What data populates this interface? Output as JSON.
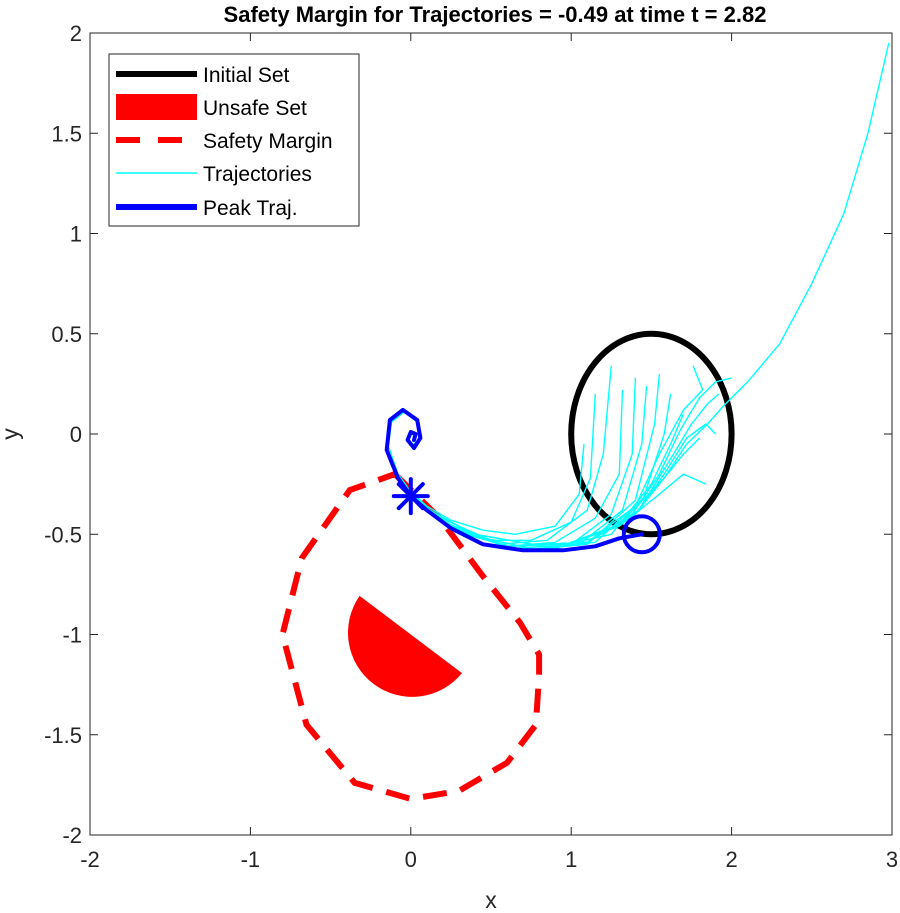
{
  "chart_data": {
    "type": "line",
    "title": "Safety Margin for Trajectories = -0.49 at time t = 2.82",
    "xlabel": "x",
    "ylabel": "y",
    "xlim": [
      -2,
      3
    ],
    "ylim": [
      -2,
      2
    ],
    "xticks": [
      -2,
      -1,
      0,
      1,
      2,
      3
    ],
    "yticks": [
      -2,
      -1.5,
      -1,
      -0.5,
      0,
      0.5,
      1,
      1.5,
      2
    ],
    "xtick_labels": [
      "-2",
      "-1",
      "0",
      "1",
      "2",
      "3"
    ],
    "ytick_labels": [
      "-2",
      "-1.5",
      "-1",
      "-0.5",
      "0",
      "0.5",
      "1",
      "1.5",
      "2"
    ],
    "grid": false,
    "legend_position": "top-left",
    "legend": [
      {
        "label": "Initial Set",
        "color": "#000000",
        "style": "thick-solid"
      },
      {
        "label": "Unsafe Set",
        "color": "#ff0000",
        "style": "patch"
      },
      {
        "label": "Safety Margin",
        "color": "#ff0000",
        "style": "dashed"
      },
      {
        "label": "Trajectories",
        "color": "#00ffff",
        "style": "thin-solid"
      },
      {
        "label": "Peak Traj.",
        "color": "#0000ff",
        "style": "thick-solid"
      }
    ],
    "initial_set": {
      "shape": "ellipse",
      "center": [
        1.5,
        0
      ],
      "radius_x": 0.5,
      "radius_y": 0.5,
      "color": "#000000"
    },
    "unsafe_set": {
      "shape": "half-disk",
      "center": [
        0,
        -1
      ],
      "radius": 0.4,
      "cut_angle_deg": -37,
      "color": "#ff0000"
    },
    "safety_margin": {
      "color": "#ff0000",
      "points": [
        [
          -0.1,
          -0.2
        ],
        [
          0.18,
          -0.42
        ],
        [
          0.46,
          -0.72
        ],
        [
          0.68,
          -0.94
        ],
        [
          0.8,
          -1.1
        ],
        [
          0.8,
          -1.2
        ],
        [
          0.78,
          -1.45
        ],
        [
          0.6,
          -1.64
        ],
        [
          0.3,
          -1.78
        ],
        [
          0,
          -1.82
        ],
        [
          -0.35,
          -1.74
        ],
        [
          -0.65,
          -1.45
        ],
        [
          -0.8,
          -1.0
        ],
        [
          -0.68,
          -0.62
        ],
        [
          -0.38,
          -0.28
        ],
        [
          -0.1,
          -0.2
        ]
      ]
    },
    "peak_marker": {
      "x": 1.44,
      "y": -0.5,
      "color": "#0000ff",
      "marker": "circle"
    },
    "peak_star": {
      "x": 0.0,
      "y": -0.31,
      "color": "#0000ff",
      "marker": "asterisk"
    },
    "trajectory_color": "#00ffff",
    "peak_color": "#0000ff",
    "trajectories": [
      [
        [
          1.08,
          -0.05
        ],
        [
          1.05,
          -0.3
        ],
        [
          0.9,
          -0.46
        ],
        [
          0.65,
          -0.5
        ],
        [
          0.45,
          -0.48
        ],
        [
          0.25,
          -0.43
        ],
        [
          0.1,
          -0.36
        ],
        [
          0.02,
          -0.3
        ]
      ],
      [
        [
          1.15,
          0.2
        ],
        [
          1.12,
          -0.22
        ],
        [
          1.0,
          -0.44
        ],
        [
          0.75,
          -0.53
        ],
        [
          0.5,
          -0.53
        ],
        [
          0.3,
          -0.46
        ],
        [
          0.12,
          -0.38
        ],
        [
          0.02,
          -0.31
        ]
      ],
      [
        [
          1.25,
          0.34
        ],
        [
          1.2,
          -0.1
        ],
        [
          1.1,
          -0.38
        ],
        [
          0.85,
          -0.53
        ],
        [
          0.55,
          -0.55
        ],
        [
          0.3,
          -0.48
        ],
        [
          0.12,
          -0.39
        ],
        [
          0.02,
          -0.31
        ]
      ],
      [
        [
          1.32,
          0.22
        ],
        [
          1.3,
          -0.2
        ],
        [
          1.15,
          -0.42
        ],
        [
          0.9,
          -0.54
        ],
        [
          0.6,
          -0.56
        ],
        [
          0.3,
          -0.48
        ],
        [
          0.12,
          -0.39
        ],
        [
          0.02,
          -0.31
        ]
      ],
      [
        [
          1.4,
          0.28
        ],
        [
          1.38,
          -0.1
        ],
        [
          1.25,
          -0.4
        ],
        [
          1.0,
          -0.55
        ],
        [
          0.65,
          -0.57
        ],
        [
          0.3,
          -0.49
        ],
        [
          0.12,
          -0.39
        ],
        [
          0.02,
          -0.31
        ]
      ],
      [
        [
          1.47,
          0.24
        ],
        [
          1.44,
          -0.05
        ],
        [
          1.32,
          -0.38
        ],
        [
          1.05,
          -0.55
        ],
        [
          0.65,
          -0.57
        ],
        [
          0.3,
          -0.49
        ],
        [
          0.12,
          -0.39
        ],
        [
          0.02,
          -0.31
        ]
      ],
      [
        [
          1.55,
          0.3
        ],
        [
          1.52,
          0.05
        ],
        [
          1.4,
          -0.33
        ],
        [
          1.1,
          -0.55
        ],
        [
          0.7,
          -0.58
        ],
        [
          0.3,
          -0.49
        ],
        [
          0.12,
          -0.39
        ],
        [
          0.02,
          -0.31
        ]
      ],
      [
        [
          1.62,
          0.2
        ],
        [
          1.58,
          0.0
        ],
        [
          1.45,
          -0.32
        ],
        [
          1.15,
          -0.54
        ],
        [
          0.7,
          -0.58
        ],
        [
          0.3,
          -0.49
        ],
        [
          0.12,
          -0.39
        ],
        [
          0.02,
          -0.31
        ]
      ],
      [
        [
          1.7,
          0.1
        ],
        [
          1.62,
          -0.05
        ],
        [
          1.5,
          -0.25
        ],
        [
          1.25,
          -0.5
        ],
        [
          0.8,
          -0.58
        ],
        [
          0.35,
          -0.5
        ],
        [
          0.12,
          -0.39
        ],
        [
          0.02,
          -0.31
        ]
      ],
      [
        [
          1.8,
          -0.02
        ],
        [
          1.7,
          -0.1
        ],
        [
          1.58,
          -0.22
        ],
        [
          1.3,
          -0.45
        ],
        [
          0.9,
          -0.57
        ],
        [
          0.4,
          -0.5
        ],
        [
          0.12,
          -0.39
        ],
        [
          0.02,
          -0.31
        ]
      ],
      [
        [
          1.84,
          -0.25
        ],
        [
          1.7,
          -0.2
        ],
        [
          1.55,
          -0.3
        ],
        [
          1.3,
          -0.46
        ],
        [
          0.9,
          -0.57
        ],
        [
          0.4,
          -0.5
        ],
        [
          0.12,
          -0.39
        ],
        [
          0.02,
          -0.31
        ]
      ],
      [
        [
          1.76,
          0.34
        ],
        [
          1.82,
          0.22
        ],
        [
          1.7,
          0.12
        ],
        [
          1.55,
          -0.1
        ],
        [
          1.4,
          -0.36
        ],
        [
          1.1,
          -0.54
        ],
        [
          0.6,
          -0.56
        ],
        [
          0.2,
          -0.44
        ],
        [
          0.02,
          -0.31
        ]
      ],
      [
        [
          1.92,
          0.2
        ],
        [
          1.85,
          0.15
        ],
        [
          1.75,
          0.05
        ],
        [
          1.6,
          -0.15
        ],
        [
          1.42,
          -0.38
        ],
        [
          1.1,
          -0.54
        ],
        [
          0.6,
          -0.56
        ],
        [
          0.2,
          -0.44
        ],
        [
          0.02,
          -0.31
        ]
      ],
      [
        [
          1.9,
          0.0
        ],
        [
          1.84,
          0.05
        ],
        [
          1.72,
          -0.02
        ],
        [
          1.58,
          -0.2
        ],
        [
          1.4,
          -0.4
        ],
        [
          1.1,
          -0.54
        ],
        [
          0.6,
          -0.56
        ],
        [
          0.2,
          -0.44
        ],
        [
          0.02,
          -0.31
        ]
      ],
      [
        [
          2.98,
          1.95
        ],
        [
          2.85,
          1.5
        ],
        [
          2.7,
          1.1
        ],
        [
          2.5,
          0.75
        ],
        [
          2.3,
          0.45
        ],
        [
          2.1,
          0.26
        ],
        [
          1.95,
          0.14
        ],
        [
          1.85,
          0.05
        ],
        [
          1.72,
          -0.05
        ],
        [
          1.58,
          -0.22
        ],
        [
          1.4,
          -0.4
        ],
        [
          1.1,
          -0.54
        ],
        [
          0.6,
          -0.56
        ],
        [
          0.2,
          -0.44
        ],
        [
          0.02,
          -0.31
        ]
      ],
      [
        [
          2.0,
          0.28
        ],
        [
          1.9,
          0.26
        ],
        [
          1.8,
          0.18
        ],
        [
          1.68,
          0.02
        ],
        [
          1.55,
          -0.2
        ],
        [
          1.38,
          -0.4
        ],
        [
          1.1,
          -0.54
        ],
        [
          0.6,
          -0.56
        ],
        [
          0.2,
          -0.44
        ],
        [
          0.02,
          -0.31
        ]
      ],
      [
        [
          0.02,
          -0.31
        ],
        [
          -0.08,
          -0.2
        ],
        [
          -0.14,
          -0.06
        ],
        [
          -0.12,
          0.06
        ],
        [
          -0.04,
          0.11
        ],
        [
          0.04,
          0.06
        ],
        [
          0.05,
          -0.03
        ],
        [
          0.0,
          -0.06
        ],
        [
          -0.02,
          -0.01
        ],
        [
          0.01,
          0.01
        ],
        [
          0.02,
          -0.02
        ]
      ]
    ],
    "peak_trajectory": [
      [
        1.44,
        -0.5
      ],
      [
        1.3,
        -0.52
      ],
      [
        1.15,
        -0.56
      ],
      [
        0.95,
        -0.58
      ],
      [
        0.7,
        -0.58
      ],
      [
        0.45,
        -0.55
      ],
      [
        0.25,
        -0.47
      ],
      [
        0.1,
        -0.38
      ],
      [
        0.0,
        -0.31
      ],
      [
        -0.08,
        -0.22
      ],
      [
        -0.15,
        -0.08
      ],
      [
        -0.13,
        0.07
      ],
      [
        -0.05,
        0.12
      ],
      [
        0.04,
        0.07
      ],
      [
        0.06,
        -0.02
      ],
      [
        0.02,
        -0.07
      ],
      [
        -0.02,
        -0.03
      ],
      [
        0.0,
        0.01
      ],
      [
        0.03,
        0.0
      ],
      [
        0.02,
        -0.03
      ]
    ]
  }
}
